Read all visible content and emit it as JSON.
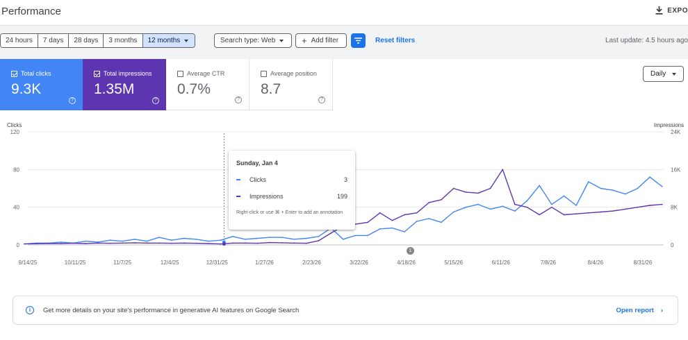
{
  "header": {
    "title": "Performance",
    "export_label": "EXPO"
  },
  "filters": {
    "ranges": [
      "24 hours",
      "7 days",
      "28 days",
      "3 months",
      "12 months"
    ],
    "search_type": "Search type: Web",
    "add_filter": "Add filter",
    "reset": "Reset filters",
    "last_update": "Last update: 4.5 hours ago"
  },
  "metrics": [
    {
      "label": "Total clicks",
      "value": "9.3K",
      "checked": true
    },
    {
      "label": "Total impressions",
      "value": "1.35M",
      "checked": true
    },
    {
      "label": "Average CTR",
      "value": "0.7%",
      "checked": false
    },
    {
      "label": "Average position",
      "value": "8.7",
      "checked": false
    }
  ],
  "granularity": "Daily",
  "colors": {
    "clicks": "#4285f4",
    "impressions": "#5e35b1",
    "accent": "#1a73e8"
  },
  "tooltip": {
    "date": "Sunday, Jan 4",
    "clicks_label": "Clicks",
    "clicks_value": "3",
    "impressions_label": "Impressions",
    "impressions_value": "199",
    "hint": "Right-click or use ⌘ + Enter to add an annotation"
  },
  "annotation_marker": "1",
  "banner": {
    "text": "Get more details on your site's performance in generative AI features on Google Search",
    "link": "Open report"
  },
  "chart_data": {
    "type": "line",
    "ylabel_left": "Clicks",
    "ylabel_right": "Impressions",
    "y_left_ticks": [
      "0",
      "40",
      "80",
      "120"
    ],
    "y_right_ticks": [
      "0",
      "8K",
      "16K",
      "24K"
    ],
    "ylim_left": [
      0,
      120
    ],
    "ylim_right": [
      0,
      24000
    ],
    "x_ticks": [
      "9/14/25",
      "10/11/25",
      "11/7/25",
      "12/4/25",
      "12/31/25",
      "1/27/26",
      "2/23/26",
      "3/22/26",
      "4/18/26",
      "5/15/26",
      "6/11/26",
      "7/8/26",
      "8/4/26",
      "8/31/26"
    ],
    "x_dates": [
      "2025-09-12",
      "2025-09-19",
      "2025-09-26",
      "2025-10-03",
      "2025-10-10",
      "2025-10-17",
      "2025-10-24",
      "2025-10-31",
      "2025-11-07",
      "2025-11-14",
      "2025-11-21",
      "2025-11-28",
      "2025-12-05",
      "2025-12-12",
      "2025-12-19",
      "2025-12-26",
      "2026-01-02",
      "2026-01-09",
      "2026-01-16",
      "2026-01-23",
      "2026-01-30",
      "2026-02-06",
      "2026-02-13",
      "2026-02-20",
      "2026-02-27",
      "2026-03-06",
      "2026-03-13",
      "2026-03-20",
      "2026-03-27",
      "2026-04-03",
      "2026-04-10",
      "2026-04-17",
      "2026-04-24",
      "2026-05-01",
      "2026-05-08",
      "2026-05-15",
      "2026-05-22",
      "2026-05-29",
      "2026-06-05",
      "2026-06-12",
      "2026-06-19",
      "2026-06-26",
      "2026-07-03",
      "2026-07-10",
      "2026-07-17",
      "2026-07-24",
      "2026-07-31",
      "2026-08-07",
      "2026-08-14",
      "2026-08-21",
      "2026-08-28",
      "2026-09-04",
      "2026-09-11"
    ],
    "series": [
      {
        "name": "Clicks",
        "axis": "left",
        "values": [
          1,
          2,
          2,
          3,
          2,
          4,
          3,
          5,
          4,
          6,
          4,
          8,
          5,
          7,
          6,
          4,
          5,
          9,
          6,
          7,
          8,
          8,
          6,
          7,
          9,
          18,
          6,
          10,
          10,
          17,
          18,
          14,
          25,
          28,
          24,
          35,
          40,
          43,
          38,
          41,
          36,
          47,
          63,
          43,
          52,
          42,
          67,
          60,
          58,
          54,
          60,
          72,
          62
        ]
      },
      {
        "name": "Impressions",
        "axis": "right",
        "values": [
          200,
          250,
          300,
          300,
          350,
          300,
          400,
          350,
          400,
          450,
          400,
          400,
          350,
          400,
          350,
          300,
          200,
          400,
          400,
          350,
          500,
          450,
          400,
          350,
          900,
          2500,
          4000,
          4400,
          4800,
          6800,
          5200,
          6400,
          6800,
          9000,
          9600,
          12000,
          11200,
          11000,
          12000,
          16000,
          8600,
          8000,
          6400,
          8000,
          6400,
          6600,
          6800,
          7000,
          7200,
          7600,
          8000,
          8400,
          8600
        ]
      }
    ],
    "grid": true,
    "legend": "none"
  }
}
